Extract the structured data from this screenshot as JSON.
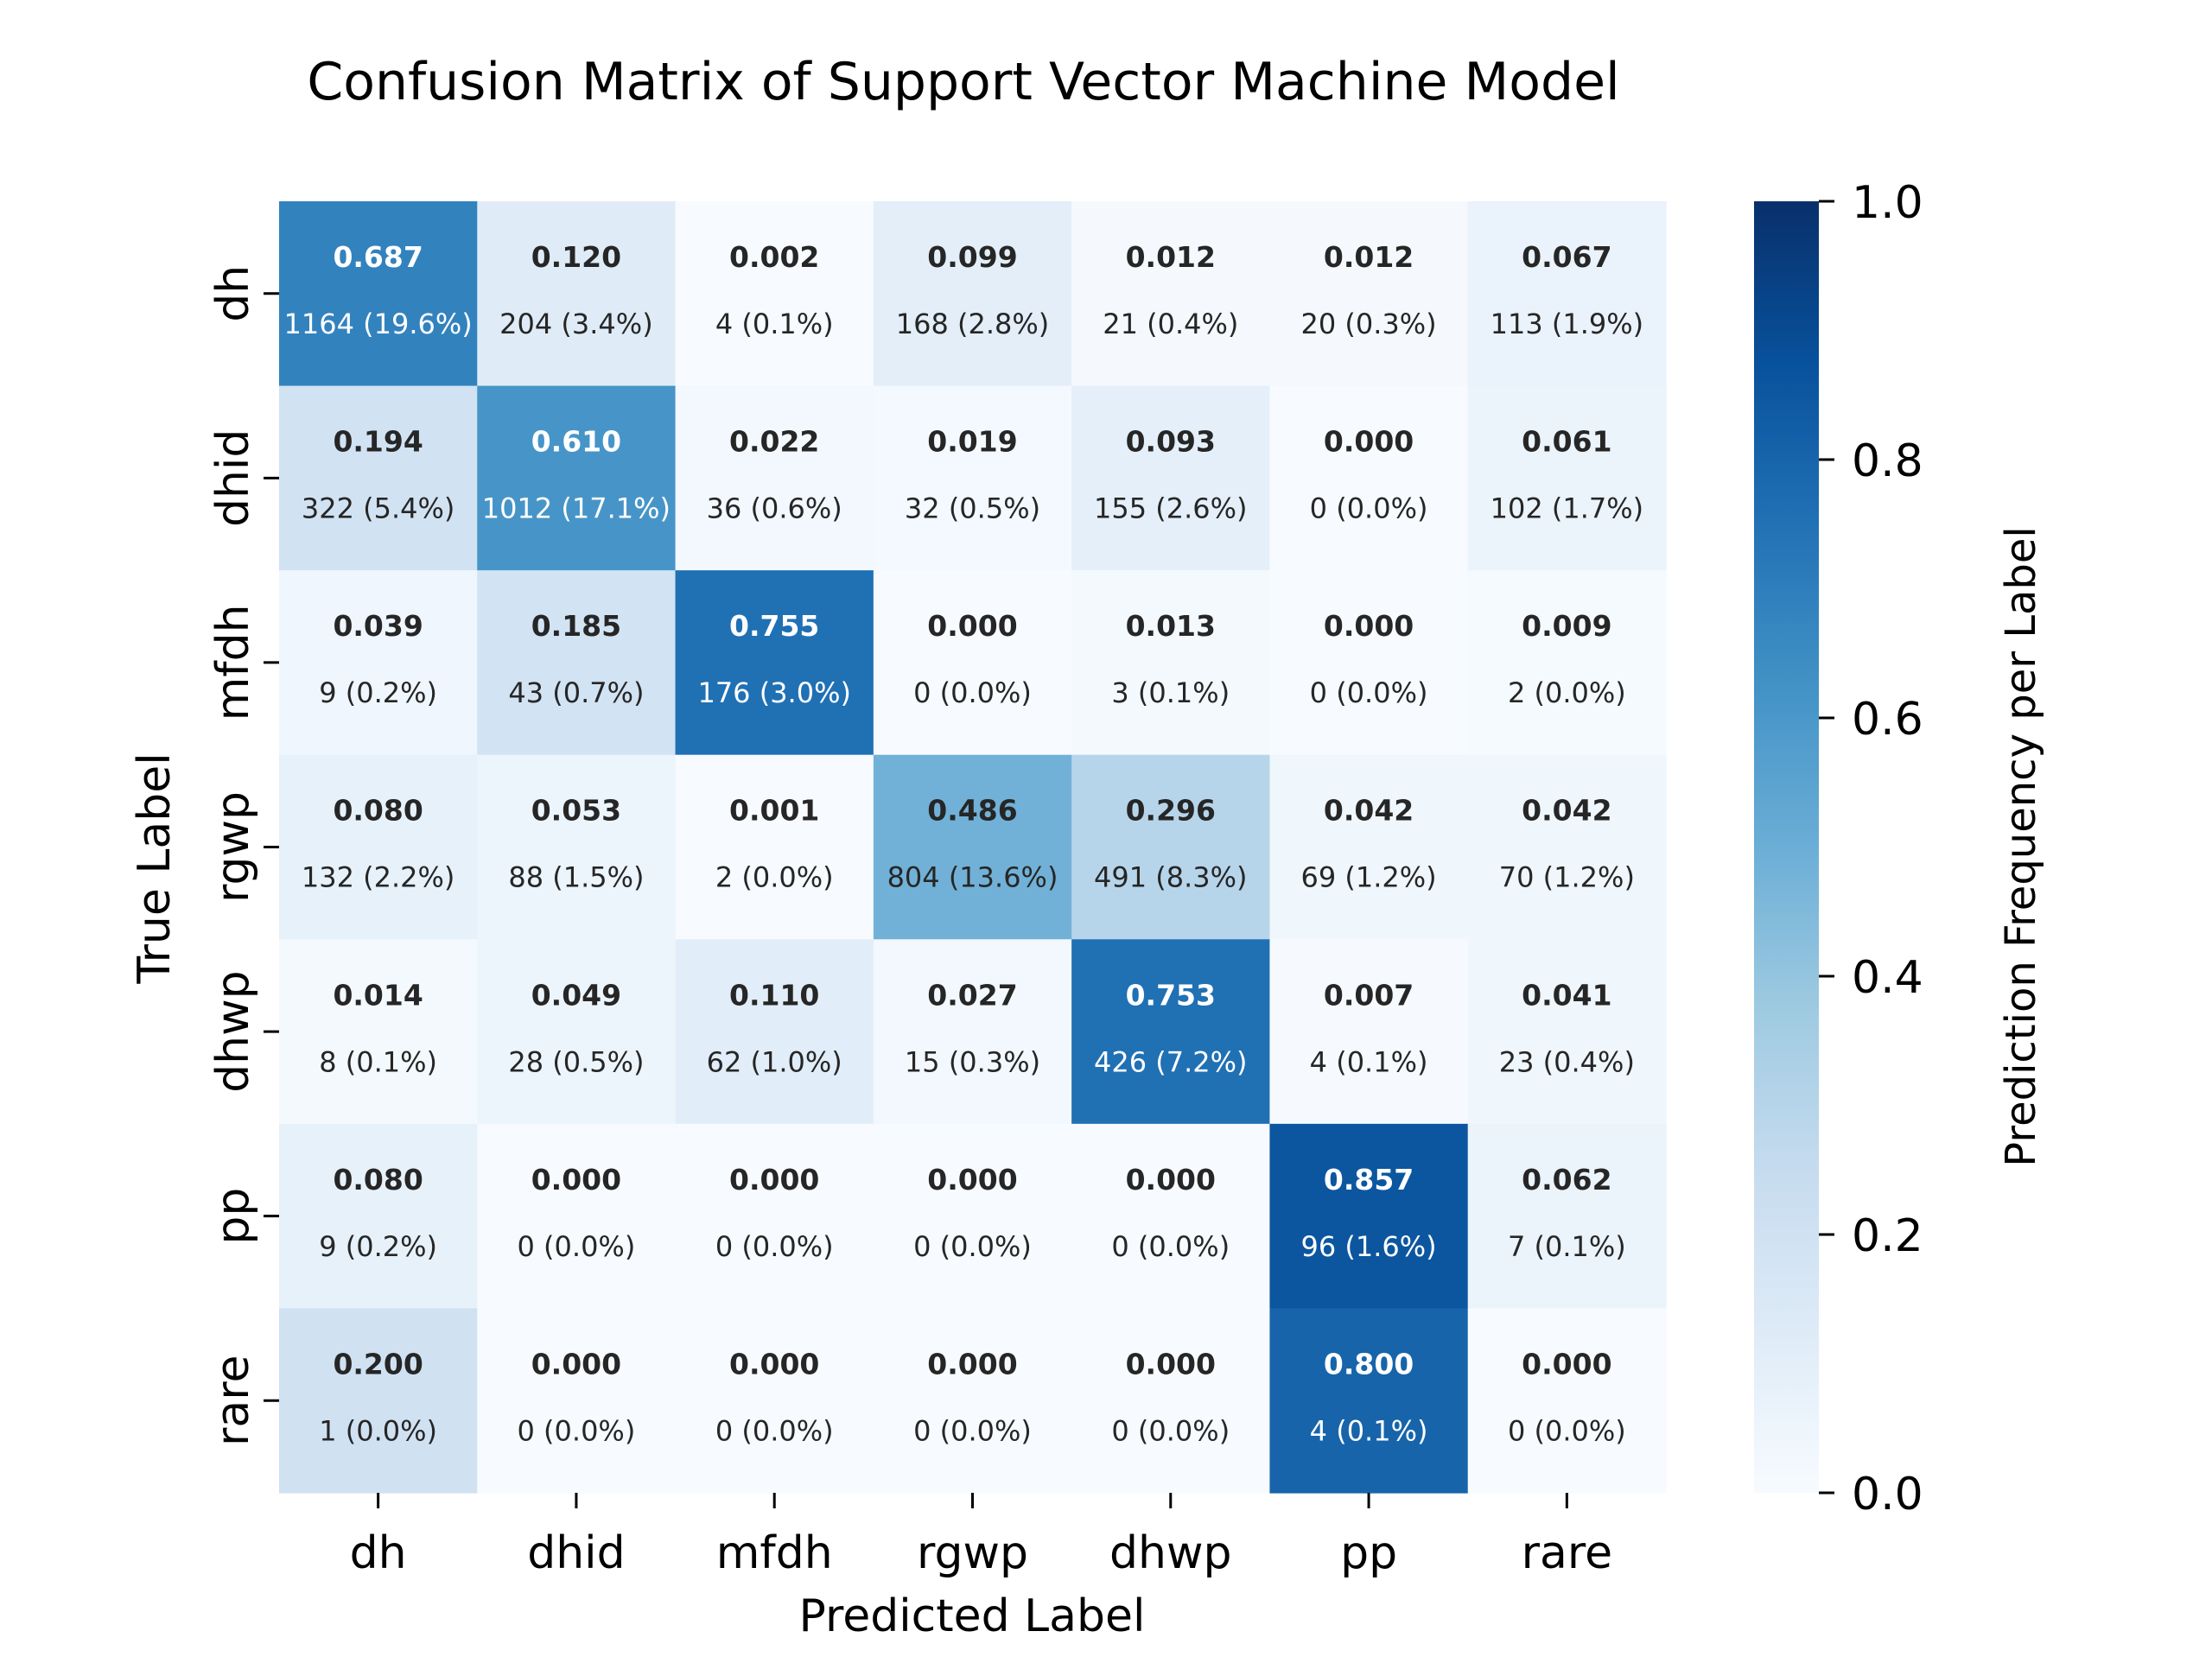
{
  "chart_data": {
    "type": "heatmap",
    "title": "Confusion Matrix of Support Vector Machine Model",
    "xlabel": "Predicted Label",
    "ylabel": "True Label",
    "x_categories": [
      "dh",
      "dhid",
      "mfdh",
      "rgwp",
      "dhwp",
      "pp",
      "rare"
    ],
    "y_categories": [
      "dh",
      "dhid",
      "mfdh",
      "rgwp",
      "dhwp",
      "pp",
      "rare"
    ],
    "values": [
      [
        0.687,
        0.12,
        0.002,
        0.099,
        0.012,
        0.012,
        0.067
      ],
      [
        0.194,
        0.61,
        0.022,
        0.019,
        0.093,
        0.0,
        0.061
      ],
      [
        0.039,
        0.185,
        0.755,
        0.0,
        0.013,
        0.0,
        0.009
      ],
      [
        0.08,
        0.053,
        0.001,
        0.486,
        0.296,
        0.042,
        0.042
      ],
      [
        0.014,
        0.049,
        0.11,
        0.027,
        0.753,
        0.007,
        0.041
      ],
      [
        0.08,
        0.0,
        0.0,
        0.0,
        0.0,
        0.857,
        0.062
      ],
      [
        0.2,
        0.0,
        0.0,
        0.0,
        0.0,
        0.8,
        0.0
      ]
    ],
    "value_labels": [
      [
        "0.687",
        "0.120",
        "0.002",
        "0.099",
        "0.012",
        "0.012",
        "0.067"
      ],
      [
        "0.194",
        "0.610",
        "0.022",
        "0.019",
        "0.093",
        "0.000",
        "0.061"
      ],
      [
        "0.039",
        "0.185",
        "0.755",
        "0.000",
        "0.013",
        "0.000",
        "0.009"
      ],
      [
        "0.080",
        "0.053",
        "0.001",
        "0.486",
        "0.296",
        "0.042",
        "0.042"
      ],
      [
        "0.014",
        "0.049",
        "0.110",
        "0.027",
        "0.753",
        "0.007",
        "0.041"
      ],
      [
        "0.080",
        "0.000",
        "0.000",
        "0.000",
        "0.000",
        "0.857",
        "0.062"
      ],
      [
        "0.200",
        "0.000",
        "0.000",
        "0.000",
        "0.000",
        "0.800",
        "0.000"
      ]
    ],
    "count_labels": [
      [
        "1164 (19.6%)",
        "204 (3.4%)",
        "4 (0.1%)",
        "168 (2.8%)",
        "21 (0.4%)",
        "20 (0.3%)",
        "113 (1.9%)"
      ],
      [
        "322 (5.4%)",
        "1012 (17.1%)",
        "36 (0.6%)",
        "32 (0.5%)",
        "155 (2.6%)",
        "0 (0.0%)",
        "102 (1.7%)"
      ],
      [
        "9 (0.2%)",
        "43 (0.7%)",
        "176 (3.0%)",
        "0 (0.0%)",
        "3 (0.1%)",
        "0 (0.0%)",
        "2 (0.0%)"
      ],
      [
        "132 (2.2%)",
        "88 (1.5%)",
        "2 (0.0%)",
        "804 (13.6%)",
        "491 (8.3%)",
        "69 (1.2%)",
        "70 (1.2%)"
      ],
      [
        "8 (0.1%)",
        "28 (0.5%)",
        "62 (1.0%)",
        "15 (0.3%)",
        "426 (7.2%)",
        "4 (0.1%)",
        "23 (0.4%)"
      ],
      [
        "9 (0.2%)",
        "0 (0.0%)",
        "0 (0.0%)",
        "0 (0.0%)",
        "0 (0.0%)",
        "96 (1.6%)",
        "7 (0.1%)"
      ],
      [
        "1 (0.0%)",
        "0 (0.0%)",
        "0 (0.0%)",
        "0 (0.0%)",
        "0 (0.0%)",
        "4 (0.1%)",
        "0 (0.0%)"
      ]
    ],
    "colorbar": {
      "label": "Prediction Frequency per Label",
      "range": [
        0.0,
        1.0
      ],
      "ticks": [
        "0.0",
        "0.2",
        "0.4",
        "0.6",
        "0.8",
        "1.0"
      ],
      "colormap": "Blues",
      "colormap_stops": [
        "#f7fbff",
        "#deebf7",
        "#c6dbef",
        "#9ecae1",
        "#6baed6",
        "#4292c6",
        "#2171b5",
        "#08519c",
        "#08306b"
      ]
    },
    "grid": false,
    "text_color_dark": "#262626",
    "text_color_light": "#ffffff"
  }
}
